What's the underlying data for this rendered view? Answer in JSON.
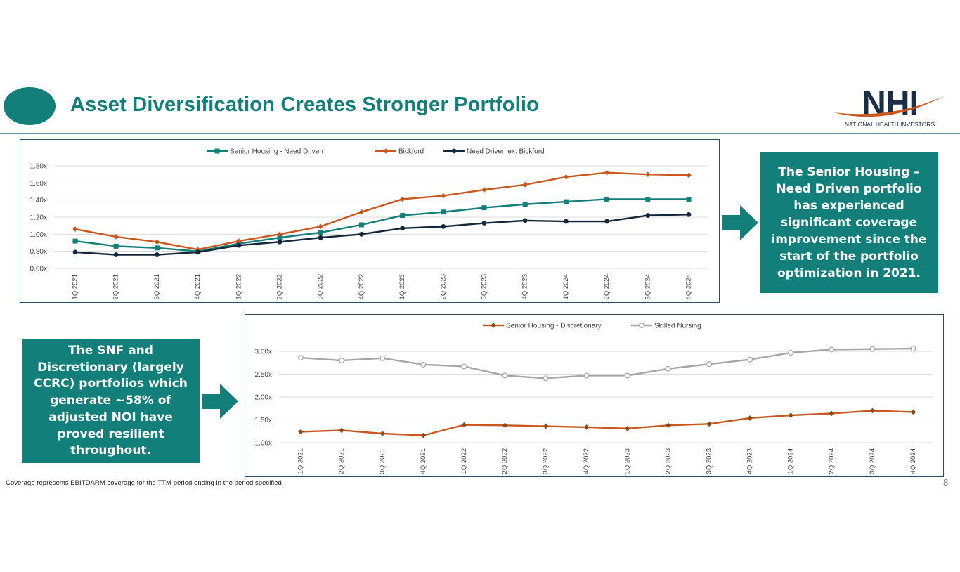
{
  "header": {
    "title": "Asset Diversification Creates Stronger Portfolio",
    "logo_text": "NHI",
    "logo_subtext": "NATIONAL HEALTH INVESTORS"
  },
  "colors": {
    "teal": "#127f7a",
    "orange": "#c8581f",
    "navy": "#14273a",
    "gray": "#a6a6a6",
    "brown": "#8b4a1c"
  },
  "chart_data": [
    {
      "type": "line",
      "categories": [
        "1Q 2021",
        "2Q 2021",
        "3Q 2021",
        "4Q 2021",
        "1Q 2022",
        "2Q 2022",
        "3Q 2022",
        "4Q 2022",
        "1Q 2023",
        "2Q 2023",
        "3Q 2023",
        "4Q 2023",
        "1Q 2024",
        "2Q 2024",
        "3Q 2024",
        "4Q 2024"
      ],
      "yticks": [
        "0.60x",
        "0.80x",
        "1.00x",
        "1.20x",
        "1.40x",
        "1.60x",
        "1.80x"
      ],
      "ylim": [
        0.6,
        1.8
      ],
      "legend_position": "top-center",
      "series": [
        {
          "name": "Senior Housing - Need Driven",
          "marker": "square",
          "values": [
            0.92,
            0.86,
            0.84,
            0.8,
            0.89,
            0.96,
            1.02,
            1.11,
            1.22,
            1.26,
            1.31,
            1.35,
            1.38,
            1.41,
            1.41,
            1.41
          ]
        },
        {
          "name": "Bickford",
          "marker": "diamond",
          "values": [
            1.06,
            0.97,
            0.91,
            0.82,
            0.92,
            1.0,
            1.09,
            1.26,
            1.41,
            1.45,
            1.52,
            1.58,
            1.67,
            1.72,
            1.7,
            1.69
          ]
        },
        {
          "name": "Need Driven ex. Bickford",
          "marker": "circle",
          "values": [
            0.79,
            0.76,
            0.76,
            0.79,
            0.87,
            0.91,
            0.96,
            1.0,
            1.07,
            1.09,
            1.13,
            1.16,
            1.15,
            1.15,
            1.22,
            1.23
          ]
        }
      ]
    },
    {
      "type": "line",
      "categories": [
        "1Q 2021",
        "2Q 2021",
        "3Q 2021",
        "4Q 2021",
        "1Q 2022",
        "2Q 2022",
        "3Q 2022",
        "4Q 2022",
        "1Q 2023",
        "2Q 2023",
        "3Q 2023",
        "4Q 2023",
        "1Q 2024",
        "2Q 2024",
        "3Q 2024",
        "4Q 2024"
      ],
      "yticks": [
        "1.00x",
        "1.50x",
        "2.00x",
        "2.50x",
        "3.00x"
      ],
      "ylim": [
        1.0,
        3.0
      ],
      "legend_position": "top-center",
      "series": [
        {
          "name": "Senior Housing - Discretionary",
          "marker": "diamond",
          "values": [
            1.24,
            1.27,
            1.2,
            1.16,
            1.39,
            1.38,
            1.36,
            1.34,
            1.31,
            1.38,
            1.41,
            1.54,
            1.6,
            1.64,
            1.7,
            1.67
          ]
        },
        {
          "name": "Skilled Nursing",
          "marker": "hollow-circle",
          "values": [
            2.86,
            2.8,
            2.85,
            2.71,
            2.67,
            2.47,
            2.41,
            2.47,
            2.47,
            2.62,
            2.72,
            2.82,
            2.97,
            3.04,
            3.05,
            3.06
          ]
        }
      ]
    }
  ],
  "callouts": {
    "top_right": "The Senior Housing – Need Driven portfolio has experienced significant coverage improvement since the start of the portfolio optimization in 2021.",
    "bottom_left": "The SNF and Discretionary (largely CCRC) portfolios which generate ~58% of adjusted NOI have proved resilient throughout."
  },
  "footnote": "Coverage represents EBITDARM coverage for the TTM period ending in the period specified.",
  "page_number": "8"
}
